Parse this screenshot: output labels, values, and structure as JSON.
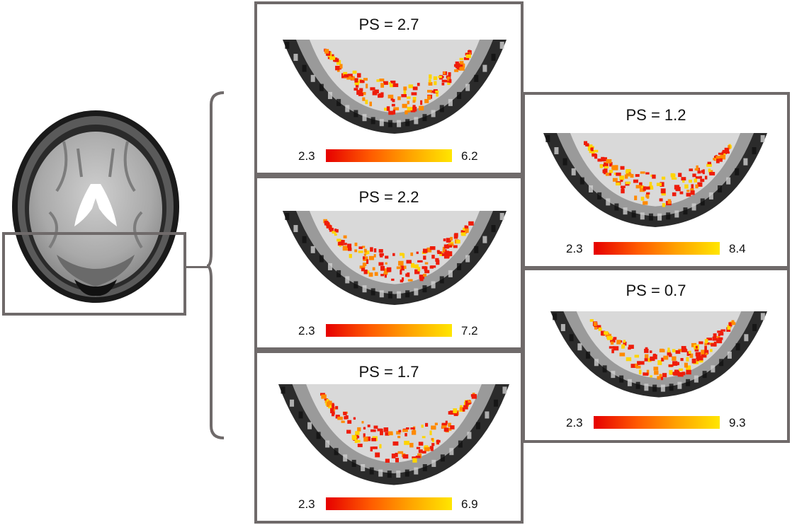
{
  "panels": [
    {
      "id": "ps27",
      "title": "PS = 2.7",
      "scale_min": "2.3",
      "scale_max": "6.2"
    },
    {
      "id": "ps22",
      "title": "PS = 2.2",
      "scale_min": "2.3",
      "scale_max": "7.2"
    },
    {
      "id": "ps17",
      "title": "PS = 1.7",
      "scale_min": "2.3",
      "scale_max": "6.9"
    },
    {
      "id": "ps12",
      "title": "PS = 1.2",
      "scale_min": "2.3",
      "scale_max": "8.4"
    },
    {
      "id": "ps07",
      "title": "PS = 0.7",
      "scale_min": "2.3",
      "scale_max": "9.3"
    }
  ],
  "colors": {
    "frame": "#6f6a6a",
    "scale_low": "#e60000",
    "scale_high": "#ffe600"
  }
}
